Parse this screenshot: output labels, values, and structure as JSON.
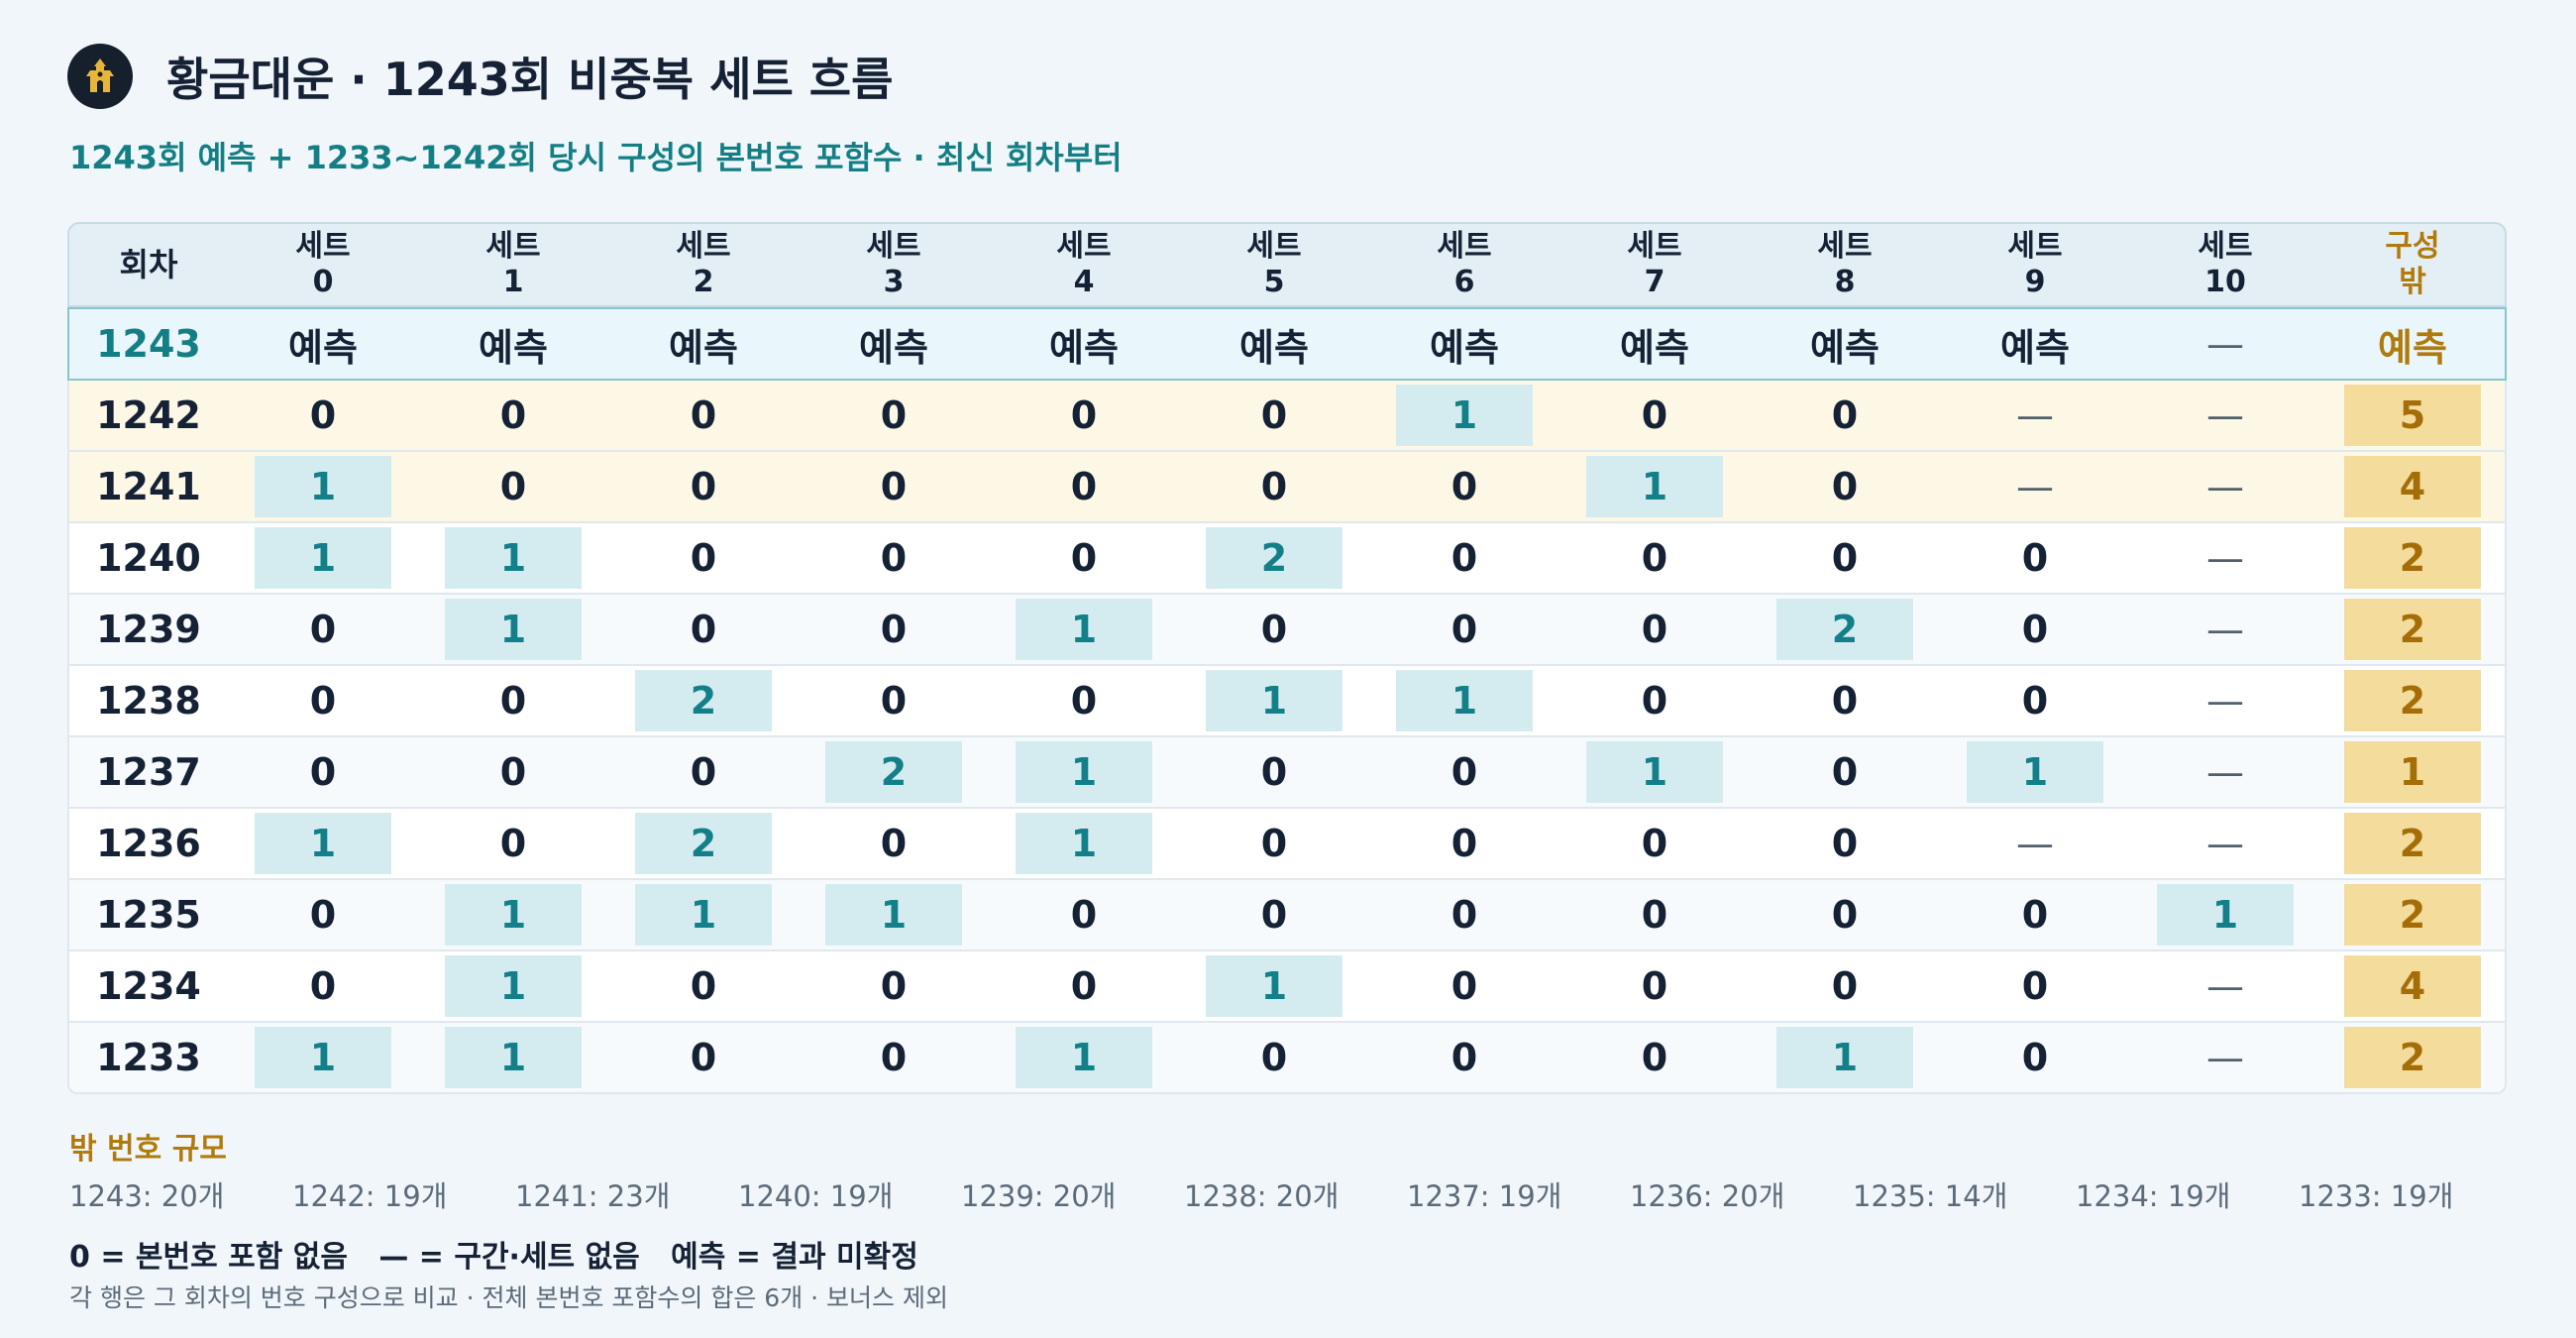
{
  "header": {
    "title": "황금대운 · 1243회 비중복 세트 흐름",
    "subtitle": "1243회 예측 + 1233~1242회 당시 구성의 본번호 포함수 · 최신 회차부터",
    "logo_icon": "pavilion-logo-icon"
  },
  "table": {
    "columns": [
      {
        "label1": "회차",
        "label2": ""
      },
      {
        "label1": "세트",
        "label2": "0"
      },
      {
        "label1": "세트",
        "label2": "1"
      },
      {
        "label1": "세트",
        "label2": "2"
      },
      {
        "label1": "세트",
        "label2": "3"
      },
      {
        "label1": "세트",
        "label2": "4"
      },
      {
        "label1": "세트",
        "label2": "5"
      },
      {
        "label1": "세트",
        "label2": "6"
      },
      {
        "label1": "세트",
        "label2": "7"
      },
      {
        "label1": "세트",
        "label2": "8"
      },
      {
        "label1": "세트",
        "label2": "9"
      },
      {
        "label1": "세트",
        "label2": "10"
      },
      {
        "label1": "구성",
        "label2": "밖"
      }
    ],
    "rows": [
      {
        "round": "1243",
        "cells": [
          "예측",
          "예측",
          "예측",
          "예측",
          "예측",
          "예측",
          "예측",
          "예측",
          "예측",
          "예측",
          "—"
        ],
        "outside": "예측"
      },
      {
        "round": "1242",
        "cells": [
          "0",
          "0",
          "0",
          "0",
          "0",
          "0",
          "1",
          "0",
          "0",
          "—",
          "—"
        ],
        "outside": "5"
      },
      {
        "round": "1241",
        "cells": [
          "1",
          "0",
          "0",
          "0",
          "0",
          "0",
          "0",
          "1",
          "0",
          "—",
          "—"
        ],
        "outside": "4"
      },
      {
        "round": "1240",
        "cells": [
          "1",
          "1",
          "0",
          "0",
          "0",
          "2",
          "0",
          "0",
          "0",
          "0",
          "—"
        ],
        "outside": "2"
      },
      {
        "round": "1239",
        "cells": [
          "0",
          "1",
          "0",
          "0",
          "1",
          "0",
          "0",
          "0",
          "2",
          "0",
          "—"
        ],
        "outside": "2"
      },
      {
        "round": "1238",
        "cells": [
          "0",
          "0",
          "2",
          "0",
          "0",
          "1",
          "1",
          "0",
          "0",
          "0",
          "—"
        ],
        "outside": "2"
      },
      {
        "round": "1237",
        "cells": [
          "0",
          "0",
          "0",
          "2",
          "1",
          "0",
          "0",
          "1",
          "0",
          "1",
          "—"
        ],
        "outside": "1"
      },
      {
        "round": "1236",
        "cells": [
          "1",
          "0",
          "2",
          "0",
          "1",
          "0",
          "0",
          "0",
          "0",
          "—",
          "—"
        ],
        "outside": "2"
      },
      {
        "round": "1235",
        "cells": [
          "0",
          "1",
          "1",
          "1",
          "0",
          "0",
          "0",
          "0",
          "0",
          "0",
          "1"
        ],
        "outside": "2"
      },
      {
        "round": "1234",
        "cells": [
          "0",
          "1",
          "0",
          "0",
          "0",
          "1",
          "0",
          "0",
          "0",
          "0",
          "—"
        ],
        "outside": "4"
      },
      {
        "round": "1233",
        "cells": [
          "1",
          "1",
          "0",
          "0",
          "1",
          "0",
          "0",
          "0",
          "1",
          "0",
          "—"
        ],
        "outside": "2"
      }
    ]
  },
  "outside_sizes": {
    "title": "밖 번호 규모",
    "items": [
      "1243: 20개",
      "1242: 19개",
      "1241: 23개",
      "1240: 19개",
      "1239: 20개",
      "1238: 20개",
      "1237: 19개",
      "1236: 20개",
      "1235: 14개",
      "1234: 19개",
      "1233: 19개"
    ]
  },
  "legend": "0 = 본번호 포함 없음   — = 구간·세트 없음   예측 = 결과 미확정",
  "note": "각 행은 그 회차의 번호 구성으로 비교 · 전체 본번호 포함수의 합은 6개 · 보너스 제외",
  "colors": {
    "accent_teal": "#137f84",
    "highlight_cell": "#d4ecef",
    "outside_gold": "#f3dc9c",
    "outside_text": "#a56d08",
    "recent_row": "#fdf8e6"
  }
}
